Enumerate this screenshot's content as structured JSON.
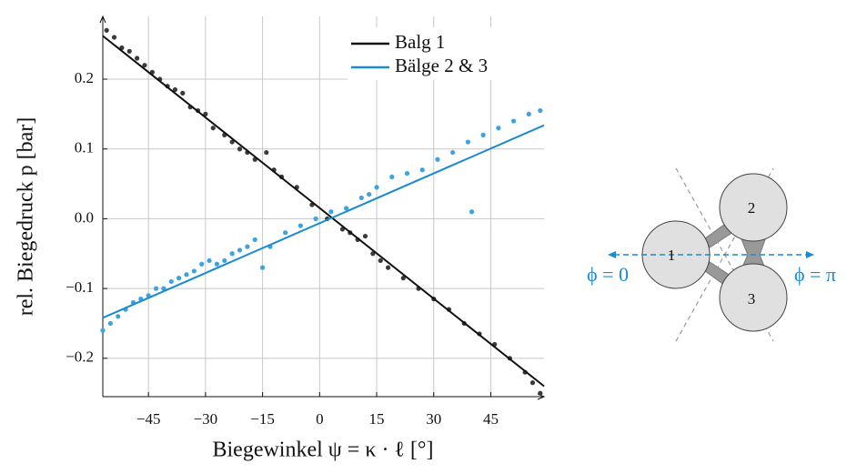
{
  "chart_data": {
    "type": "scatter",
    "xlabel": "Biegewinkel ψ = κ · ℓ [°]",
    "ylabel": "rel. Biegedruck p [bar]",
    "xlim": [
      -57,
      59
    ],
    "ylim": [
      -0.255,
      0.29
    ],
    "xticks": [
      {
        "value": -45,
        "label": "−45"
      },
      {
        "value": -30,
        "label": "−30"
      },
      {
        "value": -15,
        "label": "−15"
      },
      0,
      15,
      30,
      45
    ],
    "yticks": [
      {
        "value": -0.2,
        "label": "−0.2"
      },
      {
        "value": -0.1,
        "label": "−0.1"
      },
      {
        "value": 0,
        "label": "0.0"
      },
      0.1,
      0.2
    ],
    "grid": true,
    "legend": "upper right",
    "series": [
      {
        "name": "Balg 1",
        "color": "#111111",
        "x": [
          -57,
          59
        ],
        "values": [
          0.262,
          -0.24
        ]
      },
      {
        "name": "Bälge 2 & 3",
        "color": "#1b8ad0",
        "x": [
          -57,
          59
        ],
        "values": [
          -0.142,
          0.134
        ]
      }
    ],
    "scatter": [
      {
        "color": "#3a3a3a",
        "x": [
          -56,
          -54,
          -52,
          -50,
          -48,
          -46,
          -44,
          -42,
          -40,
          -38,
          -36,
          -34,
          -32,
          -30,
          -28,
          -25,
          -23,
          -21,
          -19,
          -17,
          -14,
          -12,
          -10,
          -6,
          -2,
          2,
          6,
          8,
          10,
          12,
          14,
          16,
          18,
          22,
          26,
          30,
          34,
          38,
          42,
          46,
          50,
          54,
          56,
          58
        ],
        "values": [
          0.27,
          0.26,
          0.245,
          0.24,
          0.23,
          0.22,
          0.21,
          0.2,
          0.19,
          0.185,
          0.18,
          0.16,
          0.155,
          0.15,
          0.13,
          0.12,
          0.11,
          0.1,
          0.095,
          0.085,
          0.095,
          0.07,
          0.06,
          0.045,
          0.02,
          0.0,
          -0.015,
          -0.02,
          -0.03,
          -0.025,
          -0.05,
          -0.06,
          -0.07,
          -0.085,
          -0.1,
          -0.115,
          -0.13,
          -0.15,
          -0.165,
          -0.18,
          -0.2,
          -0.22,
          -0.235,
          -0.25
        ]
      },
      {
        "color": "#3ba3e0",
        "x": [
          -57,
          -55,
          -53,
          -51,
          -49,
          -47,
          -45,
          -43,
          -41,
          -39,
          -37,
          -35,
          -33,
          -31,
          -29,
          -27,
          -25,
          -23,
          -21,
          -19,
          -17,
          -15,
          -13,
          -9,
          -5,
          -1,
          3,
          7,
          11,
          13,
          15,
          19,
          23,
          27,
          31,
          35,
          39,
          40,
          43,
          47,
          51,
          55,
          58
        ],
        "values": [
          -0.16,
          -0.15,
          -0.14,
          -0.13,
          -0.12,
          -0.115,
          -0.11,
          -0.1,
          -0.1,
          -0.09,
          -0.085,
          -0.08,
          -0.075,
          -0.065,
          -0.06,
          -0.065,
          -0.06,
          -0.05,
          -0.045,
          -0.04,
          -0.03,
          -0.07,
          -0.04,
          -0.02,
          -0.01,
          0.0,
          0.01,
          0.015,
          0.03,
          0.035,
          0.045,
          0.06,
          0.065,
          0.07,
          0.085,
          0.095,
          0.11,
          0.01,
          0.12,
          0.13,
          0.14,
          0.15,
          0.155
        ]
      }
    ]
  },
  "diagram": {
    "nodes": [
      "1",
      "2",
      "3"
    ],
    "left_label": "ϕ = 0",
    "right_label": "ϕ = π"
  }
}
